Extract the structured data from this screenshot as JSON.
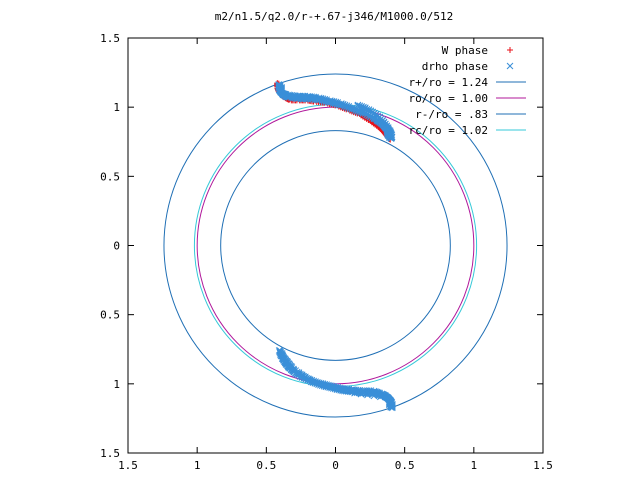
{
  "chart_data": {
    "type": "scatter",
    "title": "m2/n1.5/q2.0/r-+.67-j346/M1000.0/512",
    "xlabel": "",
    "ylabel": "",
    "xlim": [
      -1.5,
      1.5
    ],
    "ylim": [
      -1.5,
      1.5
    ],
    "x_tick_values": [
      -1.5,
      -1,
      -0.5,
      0,
      0.5,
      1,
      1.5
    ],
    "x_tick_labels": [
      "1.5",
      "1",
      "0.5",
      "0",
      "0.5",
      "1",
      "1.5"
    ],
    "y_tick_values": [
      1.5,
      1,
      0.5,
      0,
      -0.5,
      -1,
      -1.5
    ],
    "y_tick_labels": [
      "1.5",
      "1",
      "0.5",
      "0",
      "0.5",
      "1",
      "1.5"
    ],
    "grid": false,
    "legend_position": "top-right",
    "circles": [
      {
        "name": "r+/ro = 1.24",
        "radius": 1.24,
        "color": "#1f6fb5"
      },
      {
        "name": "ro/ro = 1.00",
        "radius": 1.0,
        "color": "#b0179a"
      },
      {
        "name": "r-/ro = .83",
        "radius": 0.83,
        "color": "#1f6fb5"
      },
      {
        "name": "rc/ro = 1.02",
        "radius": 1.02,
        "color": "#35c9d8"
      }
    ],
    "series": [
      {
        "name": "W phase",
        "marker": "plus",
        "color": "#e8121a",
        "points": [
          [
            -0.41,
            1.17
          ],
          [
            -0.41,
            1.13
          ],
          [
            -0.4,
            1.1
          ],
          [
            -0.38,
            1.08
          ],
          [
            -0.34,
            1.06
          ],
          [
            -0.28,
            1.06
          ],
          [
            -0.22,
            1.06
          ],
          [
            -0.16,
            1.05
          ],
          [
            -0.08,
            1.04
          ],
          [
            0.0,
            1.02
          ],
          [
            0.08,
            0.99
          ],
          [
            0.16,
            0.96
          ],
          [
            0.24,
            0.91
          ],
          [
            0.31,
            0.86
          ],
          [
            0.36,
            0.81
          ],
          [
            0.39,
            0.77
          ]
        ]
      },
      {
        "name": "drho phase",
        "marker": "cross",
        "color": "#3a8fd8",
        "points": [
          [
            -0.4,
            1.16
          ],
          [
            -0.4,
            1.12
          ],
          [
            -0.38,
            1.09
          ],
          [
            -0.34,
            1.08
          ],
          [
            -0.27,
            1.07
          ],
          [
            -0.2,
            1.07
          ],
          [
            -0.12,
            1.06
          ],
          [
            -0.04,
            1.04
          ],
          [
            0.04,
            1.02
          ],
          [
            0.12,
            0.99
          ],
          [
            0.2,
            0.96
          ],
          [
            0.28,
            0.92
          ],
          [
            0.34,
            0.88
          ],
          [
            0.38,
            0.83
          ],
          [
            0.39,
            0.78
          ],
          [
            0.4,
            0.8
          ],
          [
            0.38,
            0.85
          ],
          [
            0.32,
            0.93
          ],
          [
            0.24,
            0.98
          ],
          [
            0.16,
            1.01
          ],
          [
            -0.4,
            -0.76
          ],
          [
            -0.38,
            -0.82
          ],
          [
            -0.34,
            -0.88
          ],
          [
            -0.28,
            -0.93
          ],
          [
            -0.2,
            -0.97
          ],
          [
            -0.12,
            -1.0
          ],
          [
            -0.04,
            -1.02
          ],
          [
            0.04,
            -1.04
          ],
          [
            0.12,
            -1.05
          ],
          [
            0.2,
            -1.06
          ],
          [
            0.28,
            -1.06
          ],
          [
            0.34,
            -1.08
          ],
          [
            0.38,
            -1.1
          ],
          [
            0.4,
            -1.13
          ],
          [
            0.4,
            -1.17
          ],
          [
            -0.39,
            -0.79
          ],
          [
            -0.3,
            -0.9
          ],
          [
            -0.16,
            -0.99
          ],
          [
            0.08,
            -1.05
          ],
          [
            0.36,
            -1.09
          ]
        ]
      }
    ]
  }
}
